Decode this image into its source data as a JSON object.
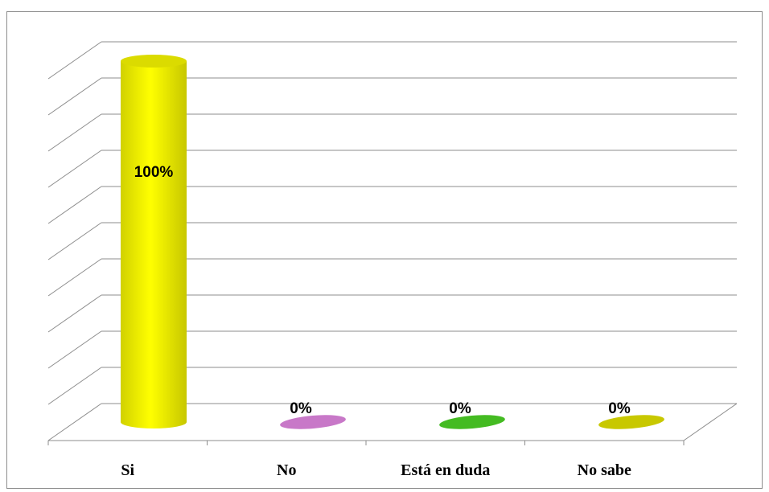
{
  "chart_data": {
    "type": "bar",
    "style": "3d-cylinder",
    "categories": [
      "Si",
      "No",
      "Está en duda",
      "No sabe"
    ],
    "values": [
      100,
      0,
      0,
      0
    ],
    "data_labels": [
      "100%",
      "0%",
      "0%",
      "0%"
    ],
    "colors": [
      "#ffff00",
      "#c878c8",
      "#44bb22",
      "#c8c800"
    ],
    "ylim": [
      0,
      100
    ],
    "grid": true,
    "legend": "none",
    "title": "",
    "xlabel": "",
    "ylabel": ""
  }
}
